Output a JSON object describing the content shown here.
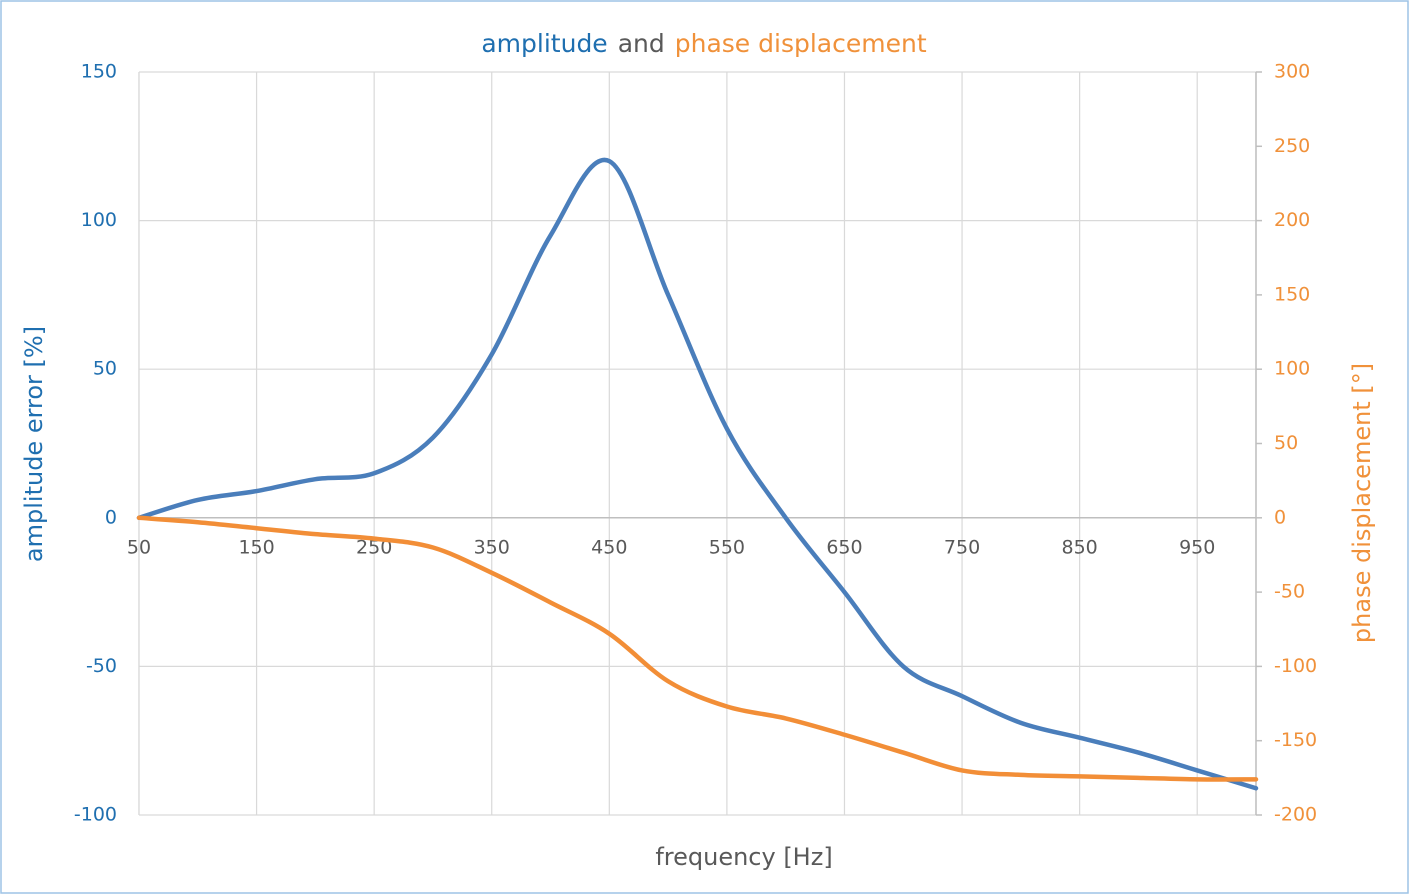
{
  "chart_data": {
    "type": "line",
    "title_parts": [
      {
        "text": "amplitude",
        "color": "#1f6fb0"
      },
      {
        "text": "and",
        "color": "#595959"
      },
      {
        "text": "phase displacement",
        "color": "#f0913a"
      }
    ],
    "x_label": "frequency [Hz]",
    "y_label": "amplitude error [%]",
    "y2_label": "phase displacement [°]",
    "x": [
      50,
      100,
      150,
      200,
      250,
      300,
      350,
      400,
      450,
      500,
      550,
      600,
      650,
      700,
      750,
      800,
      850,
      900,
      950,
      1000
    ],
    "series": [
      {
        "name": "amplitude error",
        "color": "#4a7ebb",
        "axis": "y",
        "values": [
          0,
          6,
          9,
          13,
          15,
          27,
          55,
          95,
          120,
          75,
          30,
          0,
          -25,
          -50,
          -60,
          -69,
          -74,
          -79,
          -85,
          -91
        ]
      },
      {
        "name": "phase displacement",
        "color": "#f28e37",
        "axis": "y2",
        "values": [
          0,
          -3,
          -7,
          -11,
          -14,
          -20,
          -37,
          -57,
          -78,
          -110,
          -127,
          -135,
          -146,
          -158,
          -170,
          -173,
          -174,
          -175,
          -176,
          -176
        ]
      }
    ],
    "xlim": [
      50,
      1000
    ],
    "xticks": [
      50,
      150,
      250,
      350,
      450,
      550,
      650,
      750,
      850,
      950
    ],
    "ylim": [
      -100,
      150
    ],
    "yticks": [
      -100,
      -50,
      0,
      50,
      100,
      150
    ],
    "y2lim": [
      -200,
      300
    ],
    "y2ticks": [
      -200,
      -150,
      -100,
      -50,
      0,
      50,
      100,
      150,
      200,
      250,
      300
    ],
    "y_color": "#1f6fb0",
    "y2_color": "#f0913a",
    "grid": true
  }
}
